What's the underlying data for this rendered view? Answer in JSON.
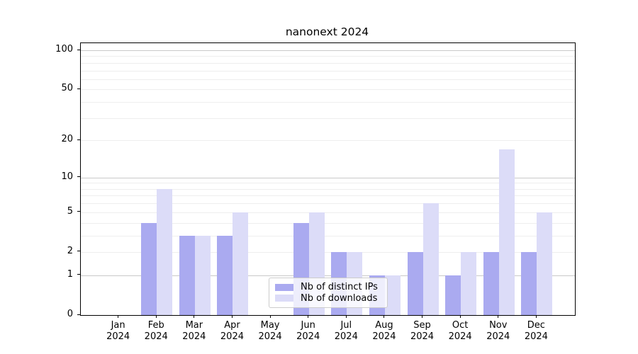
{
  "chart_data": {
    "type": "bar",
    "title": "nanonext 2024",
    "categories": [
      "Jan 2024",
      "Feb 2024",
      "Mar 2024",
      "Apr 2024",
      "May 2024",
      "Jun 2024",
      "Jul 2024",
      "Aug 2024",
      "Sep 2024",
      "Oct 2024",
      "Nov 2024",
      "Dec 2024"
    ],
    "x_axis": {
      "months": [
        "Jan",
        "Feb",
        "Mar",
        "Apr",
        "May",
        "Jun",
        "Jul",
        "Aug",
        "Sep",
        "Oct",
        "Nov",
        "Dec"
      ],
      "year": "2024"
    },
    "series": [
      {
        "name": "Nb of distinct IPs",
        "color": "#aaaaf0",
        "values": [
          0,
          4,
          3,
          3,
          0,
          4,
          2,
          1,
          2,
          1,
          2,
          2
        ]
      },
      {
        "name": "Nb of downloads",
        "color": "#dcdcf8",
        "values": [
          0,
          8,
          3,
          5,
          0,
          5,
          2,
          1,
          6,
          2,
          17,
          5
        ]
      }
    ],
    "y_axis": {
      "scale": "log1p",
      "ylim": [
        0,
        100
      ],
      "ticks": [
        "0",
        "1",
        "2",
        "5",
        "10",
        "20",
        "50",
        "100"
      ],
      "tick_values": [
        0,
        1,
        2,
        5,
        10,
        20,
        50,
        100
      ],
      "major_gridlines": [
        1,
        10,
        100
      ],
      "minor_gridlines": [
        2,
        3,
        4,
        5,
        6,
        7,
        8,
        9,
        20,
        30,
        40,
        50,
        60,
        70,
        80,
        90
      ]
    },
    "legend_position": "lower center",
    "grid": true
  },
  "colors": {
    "grid_major": "#c9c9c9",
    "grid_minor": "#eeeeee",
    "spine": "#000000",
    "legend_border": "#cccccc"
  }
}
